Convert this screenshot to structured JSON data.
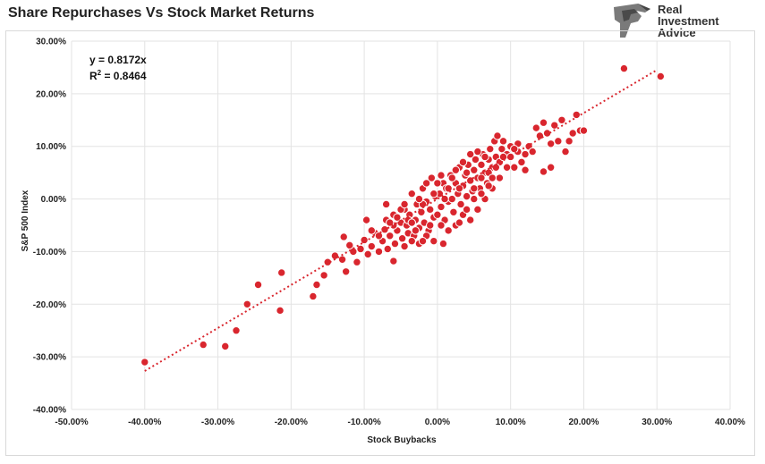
{
  "title": "Share Repurchases Vs Stock Market Returns",
  "logo": {
    "line1": "Real",
    "line2": "Investment",
    "line3": "Advice",
    "icon": "eagle-head-icon"
  },
  "colors": {
    "point_fill": "#d9262e",
    "point_stroke": "#ffffff",
    "trend": "#d9262e",
    "grid": "#e3e3e3"
  },
  "annotation": {
    "equation": "y = 0.8172x",
    "r2_prefix": "R",
    "r2_sup": "2",
    "r2_value": " = 0.8464"
  },
  "chart_data": {
    "type": "scatter",
    "title": "Share Repurchases Vs Stock Market Returns",
    "xlabel": "Stock Buybacks",
    "ylabel": "S&P 500 Index",
    "xlim": [
      -0.5,
      0.4
    ],
    "ylim": [
      -0.4,
      0.3
    ],
    "xticks": [
      -0.5,
      -0.4,
      -0.3,
      -0.2,
      -0.1,
      0.0,
      0.1,
      0.2,
      0.3,
      0.4
    ],
    "xtick_labels": [
      "-50.00%",
      "-40.00%",
      "-30.00%",
      "-20.00%",
      "-10.00%",
      "0.00%",
      "10.00%",
      "20.00%",
      "30.00%",
      "40.00%"
    ],
    "yticks": [
      -0.4,
      -0.3,
      -0.2,
      -0.1,
      0.0,
      0.1,
      0.2,
      0.3
    ],
    "ytick_labels": [
      "-40.00%",
      "-30.00%",
      "-20.00%",
      "-10.00%",
      "0.00%",
      "10.00%",
      "20.00%",
      "30.00%"
    ],
    "grid": true,
    "trendline": {
      "type": "linear",
      "slope": 0.8172,
      "intercept": 0,
      "x_range": [
        -0.4,
        0.3
      ],
      "style": "dotted"
    },
    "points": [
      [
        -0.4,
        -0.31
      ],
      [
        -0.32,
        -0.277
      ],
      [
        -0.29,
        -0.28
      ],
      [
        -0.275,
        -0.25
      ],
      [
        -0.26,
        -0.2
      ],
      [
        -0.245,
        -0.163
      ],
      [
        -0.215,
        -0.212
      ],
      [
        -0.213,
        -0.14
      ],
      [
        -0.17,
        -0.185
      ],
      [
        -0.165,
        -0.163
      ],
      [
        -0.155,
        -0.145
      ],
      [
        -0.15,
        -0.12
      ],
      [
        -0.14,
        -0.108
      ],
      [
        -0.13,
        -0.115
      ],
      [
        -0.128,
        -0.072
      ],
      [
        -0.125,
        -0.138
      ],
      [
        -0.12,
        -0.088
      ],
      [
        -0.115,
        -0.1
      ],
      [
        -0.11,
        -0.12
      ],
      [
        -0.105,
        -0.095
      ],
      [
        -0.1,
        -0.078
      ],
      [
        -0.097,
        -0.04
      ],
      [
        -0.095,
        -0.105
      ],
      [
        -0.09,
        -0.09
      ],
      [
        -0.085,
        -0.065
      ],
      [
        -0.08,
        -0.1
      ],
      [
        -0.075,
        -0.08
      ],
      [
        -0.072,
        -0.058
      ],
      [
        -0.07,
        -0.01
      ],
      [
        -0.068,
        -0.095
      ],
      [
        -0.065,
        -0.07
      ],
      [
        -0.06,
        -0.03
      ],
      [
        -0.058,
        -0.085
      ],
      [
        -0.055,
        -0.06
      ],
      [
        -0.06,
        -0.118
      ],
      [
        -0.05,
        -0.045
      ],
      [
        -0.048,
        -0.075
      ],
      [
        -0.045,
        -0.02
      ],
      [
        -0.042,
        -0.05
      ],
      [
        -0.04,
        -0.065
      ],
      [
        -0.038,
        -0.03
      ],
      [
        -0.035,
        0.01
      ],
      [
        -0.032,
        -0.07
      ],
      [
        -0.03,
        -0.04
      ],
      [
        -0.028,
        -0.01
      ],
      [
        -0.025,
        -0.055
      ],
      [
        -0.022,
        -0.025
      ],
      [
        -0.02,
        0.02
      ],
      [
        -0.018,
        -0.045
      ],
      [
        -0.015,
        -0.005
      ],
      [
        -0.012,
        -0.06
      ],
      [
        -0.01,
        -0.02
      ],
      [
        -0.008,
        0.04
      ],
      [
        -0.005,
        -0.035
      ],
      [
        -0.003,
        0.005
      ],
      [
        0.0,
        -0.03
      ],
      [
        0.003,
        0.01
      ],
      [
        0.005,
        -0.015
      ],
      [
        0.008,
        0.03
      ],
      [
        0.01,
        -0.04
      ],
      [
        0.012,
        0.02
      ],
      [
        0.015,
        -0.005
      ],
      [
        0.018,
        0.045
      ],
      [
        0.02,
        0.0
      ],
      [
        0.022,
        -0.025
      ],
      [
        0.025,
        0.03
      ],
      [
        0.028,
        0.01
      ],
      [
        0.03,
        0.06
      ],
      [
        0.032,
        -0.01
      ],
      [
        0.035,
        0.025
      ],
      [
        0.038,
        0.045
      ],
      [
        0.04,
        0.005
      ],
      [
        0.042,
        0.065
      ],
      [
        0.045,
        0.035
      ],
      [
        0.048,
        0.015
      ],
      [
        0.05,
        0.055
      ],
      [
        0.052,
        0.075
      ],
      [
        0.055,
        0.04
      ],
      [
        0.058,
        0.02
      ],
      [
        0.06,
        0.065
      ],
      [
        0.062,
        0.085
      ],
      [
        0.065,
        0.05
      ],
      [
        0.068,
        0.03
      ],
      [
        0.07,
        0.075
      ],
      [
        0.072,
        0.095
      ],
      [
        0.075,
        0.06
      ],
      [
        0.078,
        0.11
      ],
      [
        0.08,
        0.08
      ],
      [
        0.082,
        0.12
      ],
      [
        0.085,
        0.07
      ],
      [
        0.088,
        0.095
      ],
      [
        0.09,
        0.11
      ],
      [
        0.095,
        0.085
      ],
      [
        0.1,
        0.1
      ],
      [
        0.105,
        0.06
      ],
      [
        0.11,
        0.09
      ],
      [
        0.115,
        0.07
      ],
      [
        0.12,
        0.085
      ],
      [
        0.125,
        0.1
      ],
      [
        0.13,
        0.09
      ],
      [
        0.135,
        0.135
      ],
      [
        0.14,
        0.12
      ],
      [
        0.145,
        0.145
      ],
      [
        0.15,
        0.125
      ],
      [
        0.155,
        0.105
      ],
      [
        0.145,
        0.052
      ],
      [
        0.155,
        0.06
      ],
      [
        0.16,
        0.14
      ],
      [
        0.165,
        0.11
      ],
      [
        0.17,
        0.15
      ],
      [
        0.175,
        0.09
      ],
      [
        0.18,
        0.11
      ],
      [
        0.185,
        0.125
      ],
      [
        0.19,
        0.16
      ],
      [
        0.195,
        0.13
      ],
      [
        0.2,
        0.13
      ],
      [
        0.255,
        0.248
      ],
      [
        0.305,
        0.233
      ],
      [
        -0.09,
        -0.06
      ],
      [
        -0.08,
        -0.07
      ],
      [
        -0.07,
        -0.04
      ],
      [
        -0.06,
        -0.05
      ],
      [
        -0.05,
        -0.02
      ],
      [
        -0.04,
        -0.04
      ],
      [
        -0.03,
        -0.06
      ],
      [
        -0.02,
        -0.01
      ],
      [
        -0.01,
        -0.05
      ],
      [
        0.0,
        0.03
      ],
      [
        0.01,
        0.0
      ],
      [
        0.02,
        0.04
      ],
      [
        0.03,
        0.02
      ],
      [
        0.04,
        0.05
      ],
      [
        0.05,
        0.02
      ],
      [
        0.06,
        0.04
      ],
      [
        0.07,
        0.05
      ],
      [
        0.08,
        0.06
      ],
      [
        0.09,
        0.08
      ],
      [
        0.1,
        0.08
      ],
      [
        -0.045,
        -0.09
      ],
      [
        -0.035,
        -0.08
      ],
      [
        -0.025,
        -0.085
      ],
      [
        -0.015,
        -0.07
      ],
      [
        -0.005,
        -0.08
      ],
      [
        0.005,
        -0.05
      ],
      [
        0.015,
        -0.06
      ],
      [
        0.025,
        -0.05
      ],
      [
        0.035,
        -0.03
      ],
      [
        0.045,
        -0.04
      ],
      [
        0.055,
        -0.02
      ],
      [
        0.065,
        0.0
      ],
      [
        0.075,
        0.02
      ],
      [
        0.085,
        0.04
      ],
      [
        0.095,
        0.06
      ],
      [
        -0.065,
        -0.045
      ],
      [
        -0.055,
        -0.035
      ],
      [
        -0.045,
        -0.01
      ],
      [
        -0.035,
        -0.045
      ],
      [
        -0.025,
        0.0
      ],
      [
        -0.015,
        0.03
      ],
      [
        -0.005,
        0.01
      ],
      [
        0.005,
        0.045
      ],
      [
        0.015,
        0.02
      ],
      [
        0.025,
        0.055
      ],
      [
        0.035,
        0.07
      ],
      [
        0.045,
        0.085
      ],
      [
        0.055,
        0.09
      ],
      [
        0.065,
        0.08
      ],
      [
        0.075,
        0.04
      ],
      [
        0.03,
        -0.045
      ],
      [
        0.04,
        -0.02
      ],
      [
        0.05,
        0.0
      ],
      [
        0.06,
        0.01
      ],
      [
        0.07,
        0.025
      ],
      [
        0.008,
        -0.085
      ],
      [
        -0.02,
        -0.08
      ],
      [
        0.11,
        0.105
      ],
      [
        0.105,
        0.095
      ],
      [
        0.12,
        0.055
      ]
    ]
  }
}
